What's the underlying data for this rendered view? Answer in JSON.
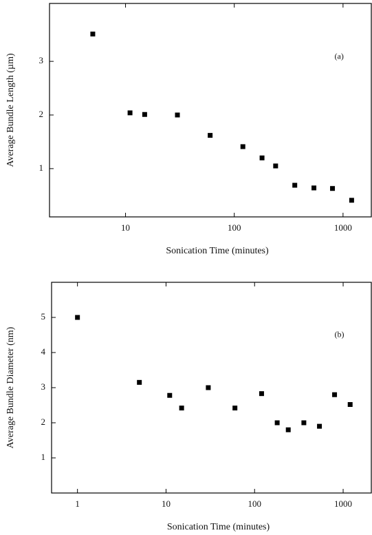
{
  "chart_data": [
    {
      "type": "scatter",
      "annotation": "(a)",
      "xlabel": "Sonication Time  (minutes)",
      "ylabel": "Average Bundle Length (µm)",
      "xscale": "log",
      "color": "#000000",
      "x": [
        5,
        11,
        15,
        30,
        60,
        120,
        180,
        240,
        360,
        540,
        800,
        1200
      ],
      "values": [
        3.51,
        2.04,
        2.01,
        2.0,
        1.62,
        1.41,
        1.2,
        1.05,
        0.69,
        0.64,
        0.63,
        0.41
      ],
      "xlim": [
        2,
        1820
      ],
      "ylim": [
        0.1,
        4.08
      ],
      "xticks": [
        10,
        100,
        1000
      ],
      "yticks": [
        1,
        2,
        3
      ]
    },
    {
      "type": "scatter",
      "annotation": "(b)",
      "xlabel": "Sonication Time  (minutes)",
      "ylabel": "Average Bundle Diameter (nm)",
      "xscale": "log",
      "color": "#000000",
      "x": [
        1,
        5,
        11,
        15,
        30,
        60,
        120,
        180,
        240,
        360,
        540,
        800,
        1200
      ],
      "values": [
        5.0,
        3.15,
        2.78,
        2.42,
        3.0,
        2.42,
        2.83,
        2.0,
        1.8,
        2.0,
        1.9,
        2.8,
        2.52
      ],
      "xlim": [
        0.51,
        2080
      ],
      "ylim": [
        0,
        6
      ],
      "xticks": [
        1,
        10,
        100,
        1000
      ],
      "yticks": [
        1,
        2,
        3,
        4,
        5
      ]
    }
  ]
}
